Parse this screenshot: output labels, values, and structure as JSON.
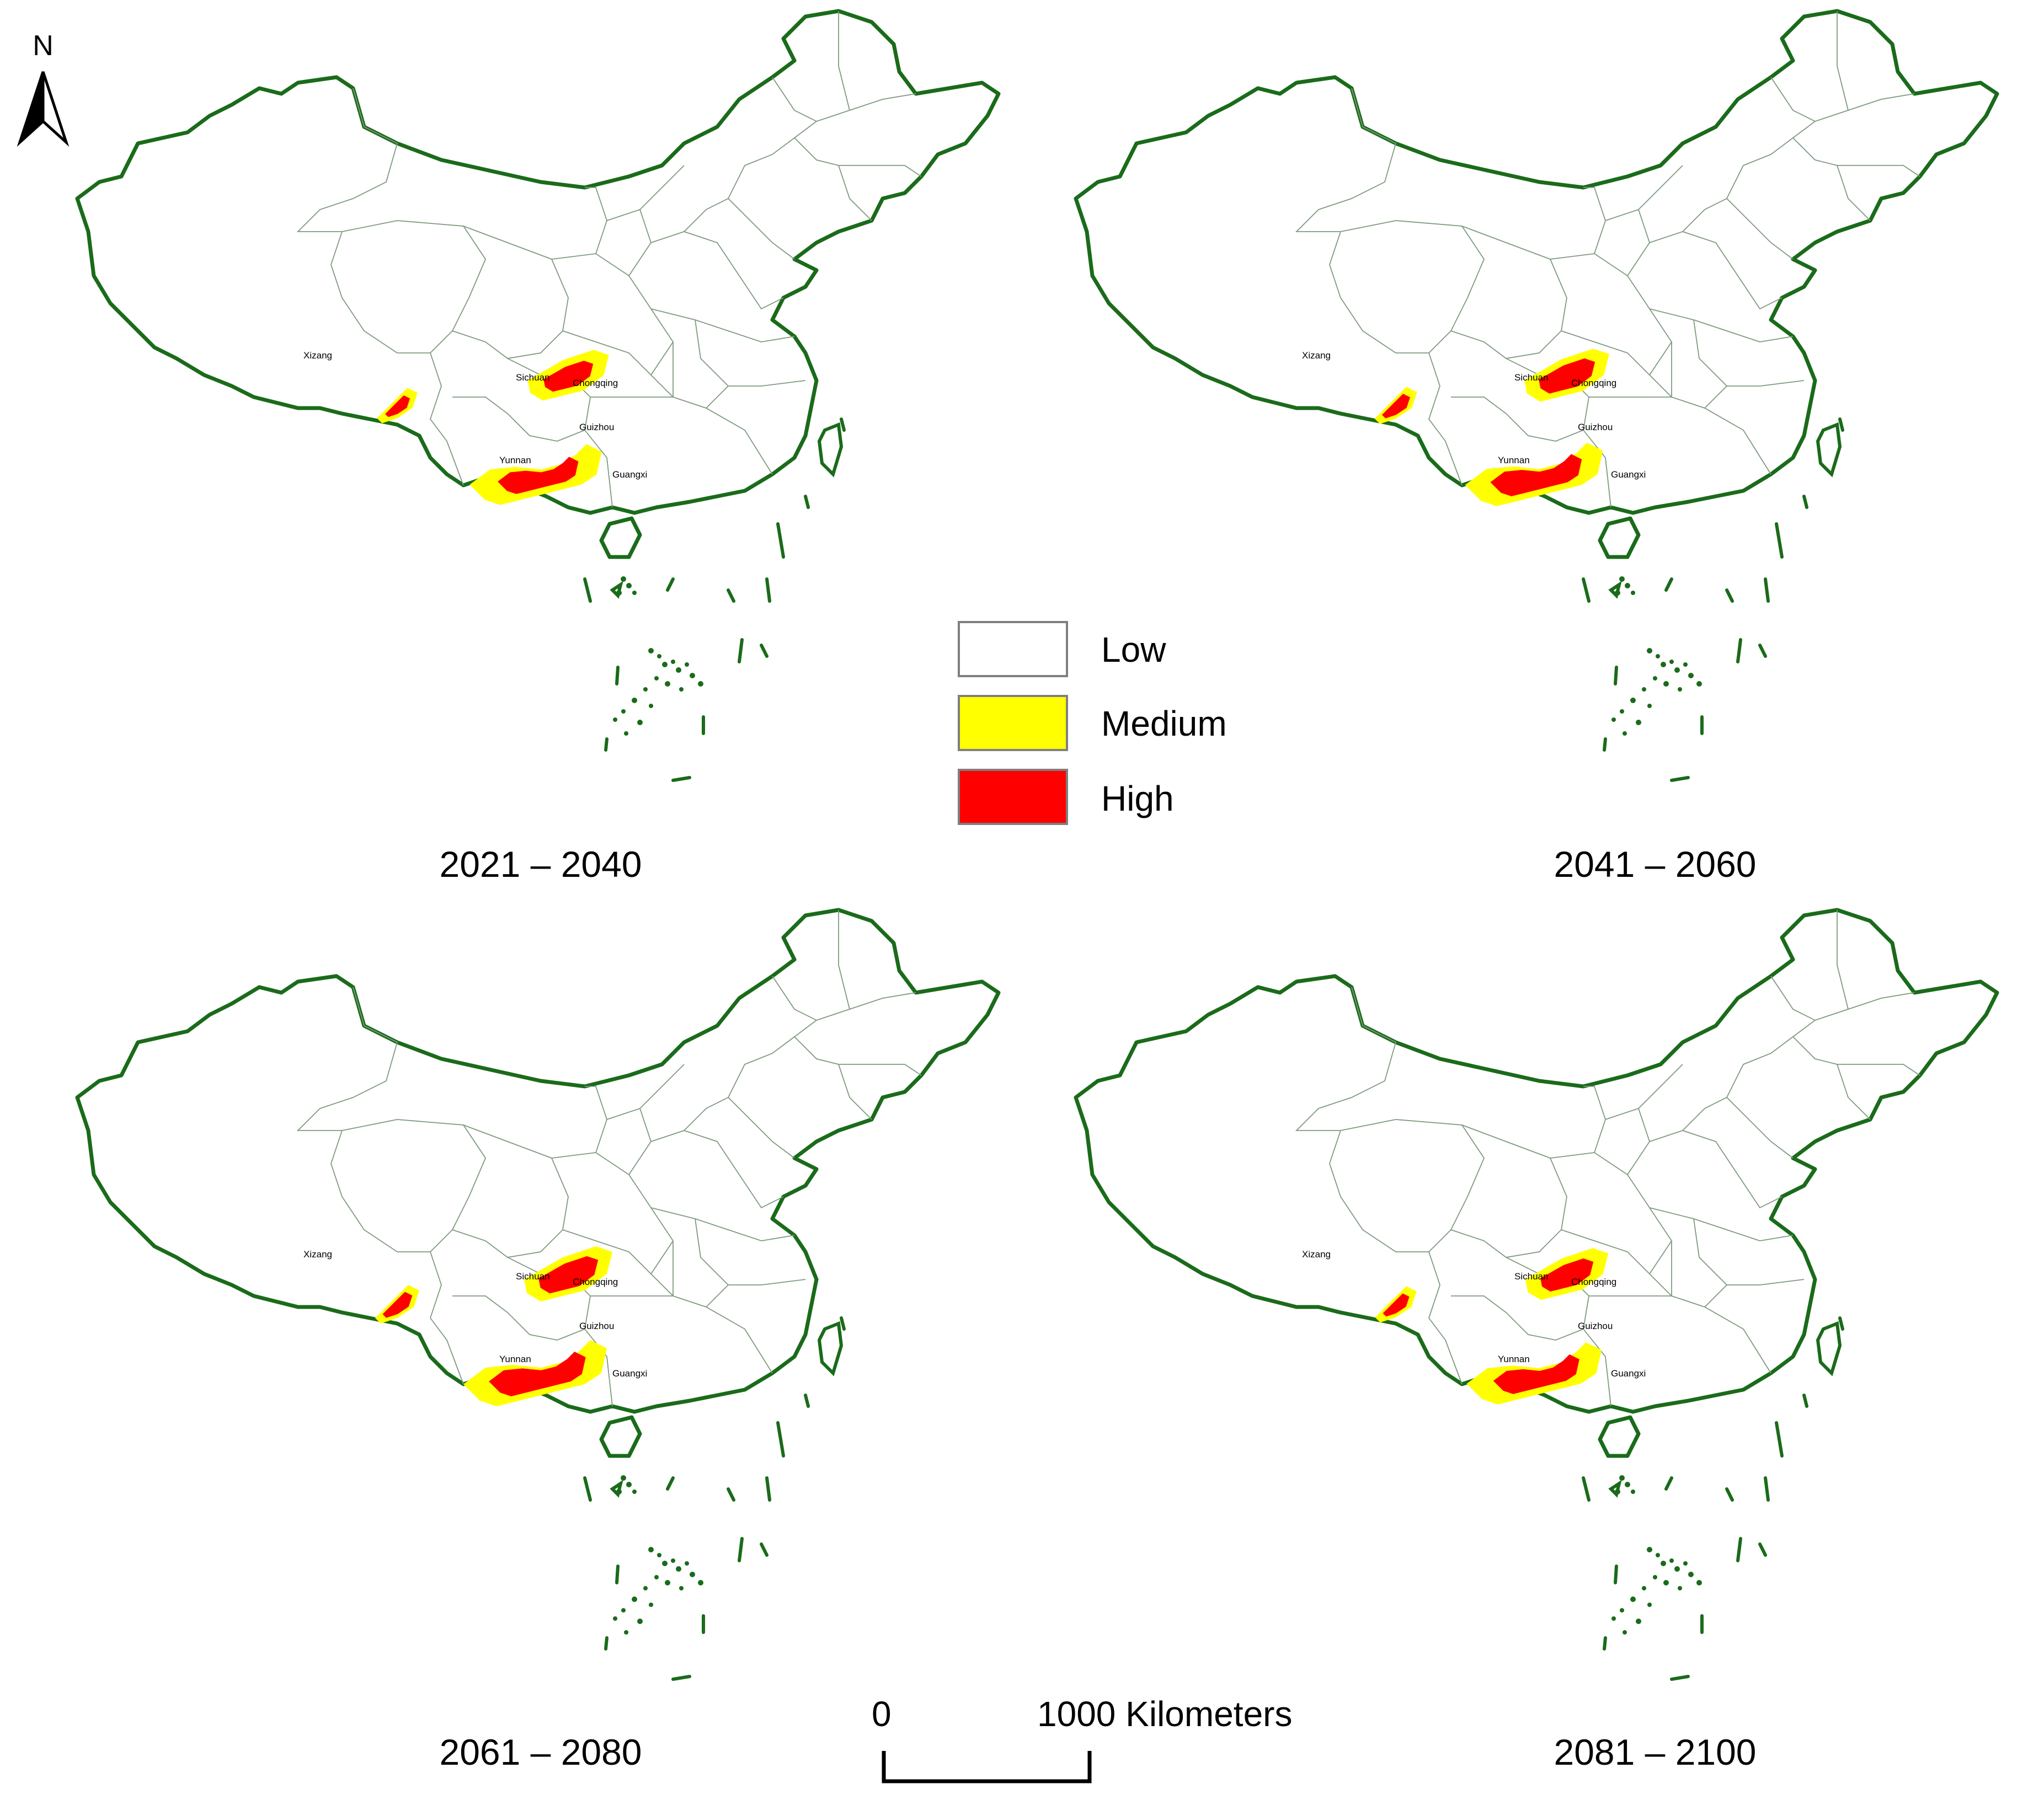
{
  "north_arrow": {
    "label": "N"
  },
  "legend": {
    "items": [
      {
        "label": "Low",
        "color": "#ffffff"
      },
      {
        "label": "Medium",
        "color": "#ffff00"
      },
      {
        "label": "High",
        "color": "#ff0000"
      }
    ]
  },
  "scale_bar": {
    "start_label": "0",
    "end_label": "1000 Kilometers"
  },
  "province_labels": {
    "xizang": "Xizang",
    "sichuan": "Sichuan",
    "chongqing": "Chongqing",
    "guizhou": "Guizhou",
    "yunnan": "Yunnan",
    "guangxi": "Guangxi"
  },
  "panels": [
    {
      "period": "2021 – 2040",
      "medium_extent": 0.8,
      "high_extent": 0.75
    },
    {
      "period": "2041 – 2060",
      "medium_extent": 0.9,
      "high_extent": 0.85
    },
    {
      "period": "2061 – 2080",
      "medium_extent": 1.0,
      "high_extent": 0.9
    },
    {
      "period": "2081 – 2100",
      "medium_extent": 0.85,
      "high_extent": 0.8
    }
  ]
}
